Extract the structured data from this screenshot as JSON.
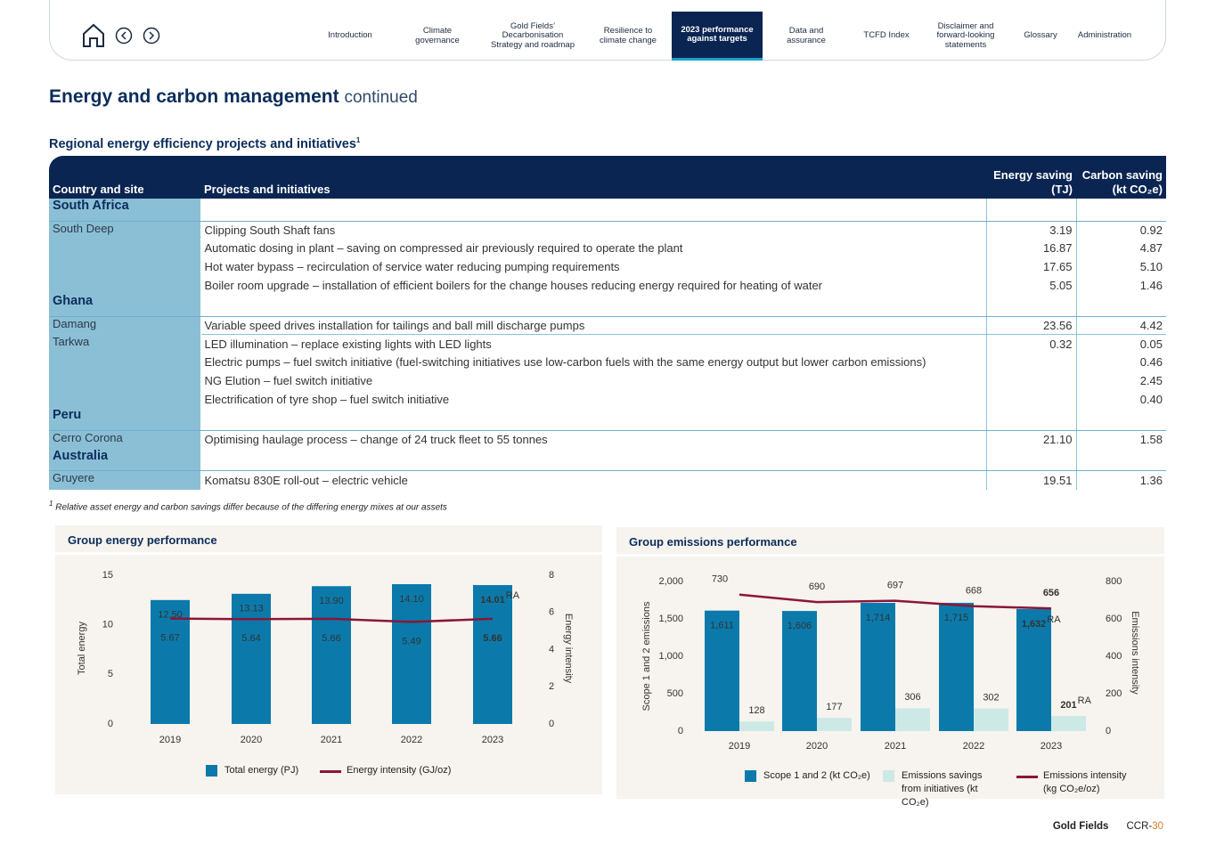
{
  "nav": {
    "items": [
      "Introduction",
      "Climate governance",
      "Gold Fields’ Decarbonisation Strategy and roadmap",
      "Resilience to climate change",
      "2023 performance against targets",
      "Data and assurance",
      "TCFD Index",
      "Disclaimer and forward-looking statements",
      "Glossary",
      "Administration"
    ],
    "active": 4
  },
  "heading": {
    "title": "Energy and carbon management",
    "suffix": "continued"
  },
  "table": {
    "title": "Regional energy efficiency projects and initiatives",
    "title_note": "1",
    "headers": [
      "Country and site",
      "Projects and initiatives",
      "Energy saving (TJ)",
      "Carbon saving (kt CO₂e)"
    ],
    "groups": [
      {
        "region": "South Africa",
        "sites": [
          {
            "site": "South Deep",
            "rows": [
              {
                "project": "Clipping South Shaft fans",
                "energy": "3.19",
                "carbon": "0.92"
              },
              {
                "project": "Automatic dosing in plant – saving on compressed air previously required to operate the plant",
                "energy": "16.87",
                "carbon": "4.87"
              },
              {
                "project": "Hot water bypass – recirculation of service water reducing pumping requirements",
                "energy": "17.65",
                "carbon": "5.10"
              },
              {
                "project": "Boiler room upgrade – installation of efficient boilers for the change houses reducing energy required for heating of water",
                "energy": "5.05",
                "carbon": "1.46"
              }
            ]
          }
        ]
      },
      {
        "region": "Ghana",
        "sites": [
          {
            "site": "Damang",
            "rows": [
              {
                "project": "Variable speed drives installation for tailings and ball mill discharge pumps",
                "energy": "23.56",
                "carbon": "4.42"
              }
            ]
          },
          {
            "site": "Tarkwa",
            "rows": [
              {
                "project": "LED illumination – replace existing lights with LED lights",
                "energy": "0.32",
                "carbon": "0.05"
              },
              {
                "project": "Electric pumps – fuel switch initiative (fuel-switching initiatives use low-carbon fuels with the same energy output but lower carbon emissions)",
                "energy": null,
                "carbon": "0.46"
              },
              {
                "project": "NG Elution – fuel switch initiative",
                "energy": null,
                "carbon": "2.45"
              },
              {
                "project": "Electrification of tyre shop – fuel switch initiative",
                "energy": null,
                "carbon": "0.40"
              }
            ]
          }
        ]
      },
      {
        "region": "Peru",
        "sites": [
          {
            "site": "Cerro Corona",
            "rows": [
              {
                "project": "Optimising haulage process – change of 24 truck fleet to 55 tonnes",
                "energy": "21.10",
                "carbon": "1.58"
              }
            ]
          }
        ]
      },
      {
        "region": "Australia",
        "sites": [
          {
            "site": "Gruyere",
            "rows": [
              {
                "project": "Komatsu 830E roll-out – electric vehicle",
                "energy": "19.51",
                "carbon": "1.36"
              }
            ]
          }
        ]
      }
    ],
    "footnote_mark": "1",
    "footnote": "Relative asset energy and carbon savings differ because of the differing energy mixes at our assets"
  },
  "chart_data": [
    {
      "type": "combo",
      "title": "Group energy performance",
      "categories": [
        "2019",
        "2020",
        "2021",
        "2022",
        "2023"
      ],
      "series": [
        {
          "name": "Total energy (PJ)",
          "type": "bar",
          "color": "#0b7aab",
          "values": [
            12.5,
            13.13,
            13.9,
            14.1,
            14.01
          ],
          "value_labels": [
            "12.50",
            "13.13",
            "13.90",
            "14.10",
            "14.01"
          ],
          "value_notes": [
            null,
            null,
            null,
            null,
            "RA"
          ]
        },
        {
          "name": "Energy intensity (GJ/oz)",
          "type": "line",
          "axis": "y2",
          "color": "#8b1538",
          "values": [
            5.67,
            5.64,
            5.66,
            5.49,
            5.66
          ]
        }
      ],
      "ylabel": "Total energy",
      "y2label": "Energy intensity",
      "ylim": [
        0,
        15
      ],
      "yticks": [
        0,
        5,
        10,
        15
      ],
      "y2lim": [
        0,
        8
      ],
      "y2ticks": [
        0,
        2,
        4,
        6,
        8
      ]
    },
    {
      "type": "combo",
      "title": "Group emissions performance",
      "categories": [
        "2019",
        "2020",
        "2021",
        "2022",
        "2023"
      ],
      "series": [
        {
          "name": "Scope 1 and 2 (kt CO₂e)",
          "type": "bar",
          "color": "#0b7aab",
          "values": [
            1611,
            1606,
            1714,
            1715,
            1632
          ],
          "value_labels": [
            "1,611",
            "1,606",
            "1,714",
            "1,715",
            "1,632"
          ],
          "value_notes": [
            null,
            null,
            null,
            null,
            "RA"
          ]
        },
        {
          "name": "Emissions savings from initiatives (kt CO₂e)",
          "type": "bar",
          "color": "#cde9e6",
          "values": [
            128,
            177,
            306,
            302,
            201
          ],
          "value_notes": [
            null,
            null,
            null,
            null,
            "RA"
          ]
        },
        {
          "name": "Emissions intensity (kg CO₂e/oz)",
          "type": "line",
          "axis": "y2",
          "color": "#8b1538",
          "values": [
            730,
            690,
            697,
            668,
            656
          ]
        }
      ],
      "ylabel": "Scope 1 and 2 emissions",
      "y2label": "Emissions intensity",
      "ylim": [
        0,
        2000
      ],
      "yticks": [
        0,
        500,
        {
          "value": 1000,
          "label": "1,000"
        },
        {
          "value": 1500,
          "label": "1,500"
        },
        {
          "value": 2000,
          "label": "2,000"
        }
      ],
      "y2lim": [
        0,
        800
      ],
      "y2ticks": [
        0,
        200,
        400,
        600,
        800
      ]
    }
  ],
  "footer": {
    "brand": "Gold Fields",
    "page_prefix": "CCR-",
    "page_number": "30"
  }
}
